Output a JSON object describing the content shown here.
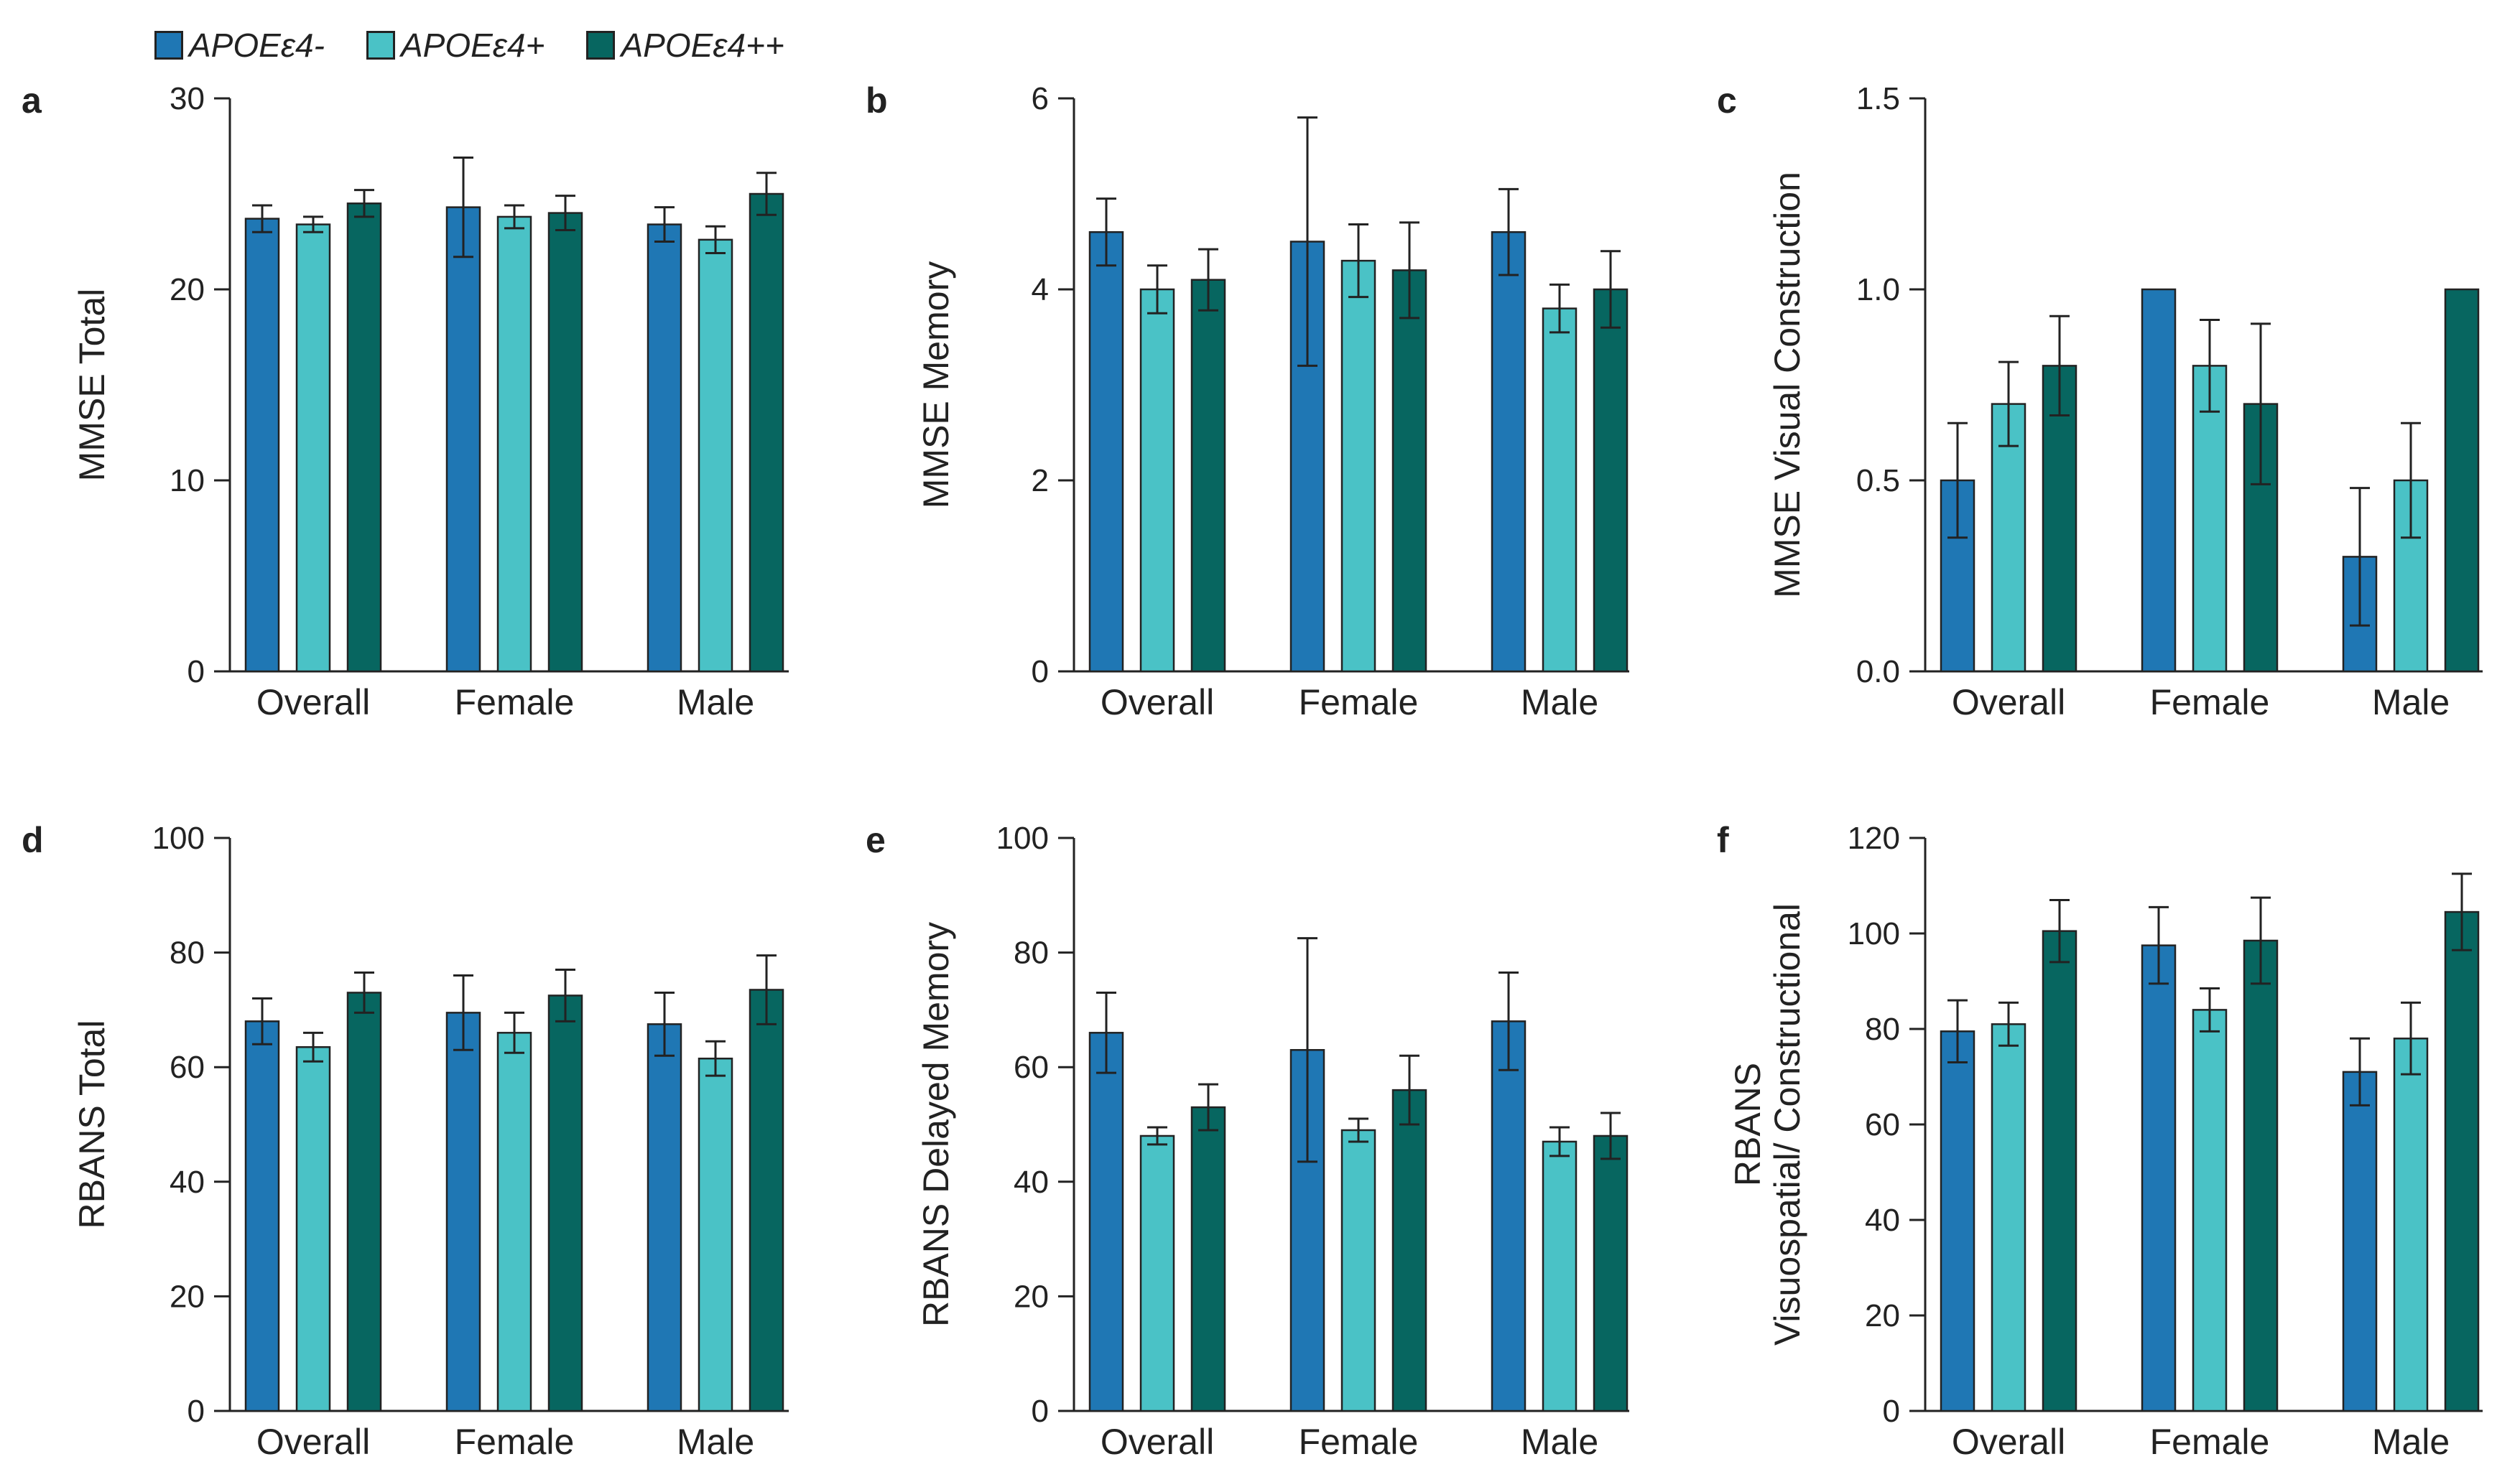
{
  "legend": {
    "items": [
      {
        "label": "APOEε4-",
        "color": "#1f77b4"
      },
      {
        "label": "APOEε4+",
        "color": "#4ac2c6"
      },
      {
        "label": "APOEε4++",
        "color": "#076660"
      }
    ]
  },
  "chart_data": [
    {
      "type": "bar",
      "panel": "a",
      "ylabel": [
        "MMSE Total"
      ],
      "categories": [
        "Overall",
        "Female",
        "Male"
      ],
      "yticks": [
        "0",
        "10",
        "20",
        "30"
      ],
      "ylim": [
        0,
        30
      ],
      "series": [
        {
          "name": "APOEε4-",
          "values": [
            23.7,
            24.3,
            23.4
          ],
          "errors": [
            0.7,
            2.6,
            0.9
          ]
        },
        {
          "name": "APOEε4+",
          "values": [
            23.4,
            23.8,
            22.6
          ],
          "errors": [
            0.4,
            0.6,
            0.7
          ]
        },
        {
          "name": "APOEε4++",
          "values": [
            24.5,
            24.0,
            25.0
          ],
          "errors": [
            0.7,
            0.9,
            1.1
          ]
        }
      ]
    },
    {
      "type": "bar",
      "panel": "b",
      "ylabel": [
        "MMSE Memory"
      ],
      "categories": [
        "Overall",
        "Female",
        "Male"
      ],
      "yticks": [
        "0",
        "2",
        "4",
        "6"
      ],
      "ylim": [
        0,
        6
      ],
      "series": [
        {
          "name": "APOEε4-",
          "values": [
            4.6,
            4.5,
            4.6
          ],
          "errors": [
            0.35,
            1.3,
            0.45
          ]
        },
        {
          "name": "APOEε4+",
          "values": [
            4.0,
            4.3,
            3.8
          ],
          "errors": [
            0.25,
            0.38,
            0.25
          ]
        },
        {
          "name": "APOEε4++",
          "values": [
            4.1,
            4.2,
            4.0
          ],
          "errors": [
            0.32,
            0.5,
            0.4
          ]
        }
      ]
    },
    {
      "type": "bar",
      "panel": "c",
      "ylabel": [
        "MMSE Visual Construction"
      ],
      "categories": [
        "Overall",
        "Female",
        "Male"
      ],
      "yticks": [
        "0.0",
        "0.5",
        "1.0",
        "1.5"
      ],
      "ylim": [
        0,
        1.5
      ],
      "series": [
        {
          "name": "APOEε4-",
          "values": [
            0.5,
            1.0,
            0.3
          ],
          "errors": [
            0.15,
            0.0,
            0.18
          ]
        },
        {
          "name": "APOEε4+",
          "values": [
            0.7,
            0.8,
            0.5
          ],
          "errors": [
            0.11,
            0.12,
            0.15
          ]
        },
        {
          "name": "APOEε4++",
          "values": [
            0.8,
            0.7,
            1.0
          ],
          "errors": [
            0.13,
            0.21,
            0.0
          ]
        }
      ]
    },
    {
      "type": "bar",
      "panel": "d",
      "ylabel": [
        "RBANS Total"
      ],
      "categories": [
        "Overall",
        "Female",
        "Male"
      ],
      "yticks": [
        "0",
        "20",
        "40",
        "60",
        "80",
        "100"
      ],
      "ylim": [
        0,
        100
      ],
      "series": [
        {
          "name": "APOEε4-",
          "values": [
            68,
            69.5,
            67.5
          ],
          "errors": [
            4,
            6.5,
            5.5
          ]
        },
        {
          "name": "APOEε4+",
          "values": [
            63.5,
            66,
            61.5
          ],
          "errors": [
            2.5,
            3.5,
            3
          ]
        },
        {
          "name": "APOEε4++",
          "values": [
            73,
            72.5,
            73.5
          ],
          "errors": [
            3.5,
            4.5,
            6
          ]
        }
      ]
    },
    {
      "type": "bar",
      "panel": "e",
      "ylabel": [
        "RBANS Delayed Memory"
      ],
      "categories": [
        "Overall",
        "Female",
        "Male"
      ],
      "yticks": [
        "0",
        "20",
        "40",
        "60",
        "80",
        "100"
      ],
      "ylim": [
        0,
        100
      ],
      "series": [
        {
          "name": "APOEε4-",
          "values": [
            66,
            63,
            68
          ],
          "errors": [
            7,
            19.5,
            8.5
          ]
        },
        {
          "name": "APOEε4+",
          "values": [
            48,
            49,
            47
          ],
          "errors": [
            1.5,
            2,
            2.5
          ]
        },
        {
          "name": "APOEε4++",
          "values": [
            53,
            56,
            48
          ],
          "errors": [
            4,
            6,
            4
          ]
        }
      ]
    },
    {
      "type": "bar",
      "panel": "f",
      "ylabel": [
        "RBANS",
        "Visuospatial/ Constructional"
      ],
      "categories": [
        "Overall",
        "Female",
        "Male"
      ],
      "yticks": [
        "0",
        "20",
        "40",
        "60",
        "80",
        "100",
        "120"
      ],
      "ylim": [
        0,
        120
      ],
      "series": [
        {
          "name": "APOEε4-",
          "values": [
            79.5,
            97.5,
            71
          ],
          "errors": [
            6.5,
            8,
            7
          ]
        },
        {
          "name": "APOEε4+",
          "values": [
            81,
            84,
            78
          ],
          "errors": [
            4.5,
            4.5,
            7.5
          ]
        },
        {
          "name": "APOEε4++",
          "values": [
            100.5,
            98.5,
            104.5
          ],
          "errors": [
            6.5,
            9,
            8
          ]
        }
      ]
    }
  ]
}
